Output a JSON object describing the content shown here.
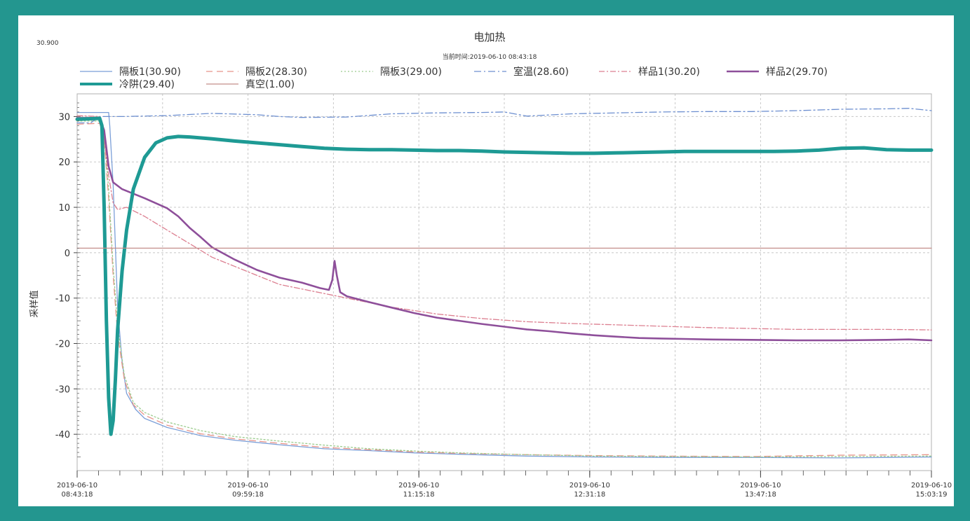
{
  "chart_data": {
    "type": "line",
    "title": "电加热",
    "subtitle": "当前时间:2019-06-10  08:43:18",
    "corner_value": "30.900",
    "ylabel": "采样值",
    "xlabel": "",
    "ylim": [
      -48,
      35
    ],
    "yticks": [
      30,
      20,
      10,
      0,
      -10,
      -20,
      -30,
      -40
    ],
    "x_unit": "minutes since 2019-06-10 08:43:18",
    "xlim": [
      0,
      380
    ],
    "xticks": [
      {
        "x": 0,
        "date": "2019-06-10",
        "time": "08:43:18"
      },
      {
        "x": 76,
        "date": "2019-06-10",
        "time": "09:59:18"
      },
      {
        "x": 152,
        "date": "2019-06-10",
        "time": "11:15:18"
      },
      {
        "x": 228,
        "date": "2019-06-10",
        "time": "12:31:18"
      },
      {
        "x": 304,
        "date": "2019-06-10",
        "time": "13:47:18"
      },
      {
        "x": 380,
        "date": "2019-06-10",
        "time": "15:03:19"
      }
    ],
    "grid": true,
    "legend_position": "top",
    "series": [
      {
        "name": "隔板1(30.90)",
        "color": "#7b9fd8",
        "dash": "",
        "width": 1.3,
        "points": [
          [
            0,
            30.9
          ],
          [
            14,
            30.9
          ],
          [
            14.5,
            28
          ],
          [
            16,
            15
          ],
          [
            18,
            -12
          ],
          [
            20,
            -24
          ],
          [
            22,
            -31
          ],
          [
            26,
            -34.5
          ],
          [
            30,
            -36.5
          ],
          [
            40,
            -38.5
          ],
          [
            55,
            -40.3
          ],
          [
            70,
            -41.3
          ],
          [
            90,
            -42.3
          ],
          [
            110,
            -43.2
          ],
          [
            130,
            -43.6
          ],
          [
            150,
            -44.1
          ],
          [
            170,
            -44.4
          ],
          [
            200,
            -44.8
          ],
          [
            230,
            -45.0
          ],
          [
            260,
            -45.1
          ],
          [
            300,
            -45.1
          ],
          [
            340,
            -45.2
          ],
          [
            380,
            -45.0
          ]
        ]
      },
      {
        "name": "隔板2(28.30)",
        "color": "#e8948a",
        "dash": "9,6",
        "width": 1.3,
        "points": [
          [
            0,
            28.3
          ],
          [
            10,
            28.5
          ],
          [
            12,
            25
          ],
          [
            14,
            12
          ],
          [
            16,
            -5
          ],
          [
            18,
            -18
          ],
          [
            21,
            -28
          ],
          [
            25,
            -33.5
          ],
          [
            30,
            -35.8
          ],
          [
            40,
            -38
          ],
          [
            55,
            -39.9
          ],
          [
            70,
            -41
          ],
          [
            90,
            -42
          ],
          [
            110,
            -42.9
          ],
          [
            130,
            -43.4
          ],
          [
            150,
            -43.9
          ],
          [
            170,
            -44.2
          ],
          [
            200,
            -44.5
          ],
          [
            230,
            -44.7
          ],
          [
            260,
            -44.8
          ],
          [
            300,
            -44.9
          ],
          [
            340,
            -44.6
          ],
          [
            380,
            -44.5
          ]
        ]
      },
      {
        "name": "隔板3(29.00)",
        "color": "#9ccc8e",
        "dash": "2,3",
        "width": 1.3,
        "points": [
          [
            0,
            29
          ],
          [
            10,
            29
          ],
          [
            12,
            26
          ],
          [
            14,
            14
          ],
          [
            16,
            -3
          ],
          [
            18,
            -16
          ],
          [
            21,
            -27
          ],
          [
            25,
            -33
          ],
          [
            30,
            -35.2
          ],
          [
            40,
            -37.3
          ],
          [
            55,
            -39.2
          ],
          [
            70,
            -40.5
          ],
          [
            90,
            -41.5
          ],
          [
            110,
            -42.4
          ],
          [
            130,
            -43.2
          ],
          [
            150,
            -43.7
          ],
          [
            170,
            -44.1
          ],
          [
            200,
            -44.5
          ],
          [
            230,
            -44.8
          ],
          [
            260,
            -44.9
          ],
          [
            300,
            -45
          ],
          [
            340,
            -44.9
          ],
          [
            380,
            -44.8
          ]
        ]
      },
      {
        "name": "室温(28.60)",
        "color": "#6d8fd0",
        "dash": "10,4,2,4",
        "width": 1.3,
        "points": [
          [
            0,
            28.6
          ],
          [
            6,
            28.6
          ],
          [
            10,
            30
          ],
          [
            20,
            30
          ],
          [
            40,
            30.2
          ],
          [
            60,
            30.7
          ],
          [
            80,
            30.4
          ],
          [
            90,
            30
          ],
          [
            100,
            29.8
          ],
          [
            120,
            29.9
          ],
          [
            140,
            30.6
          ],
          [
            160,
            30.8
          ],
          [
            180,
            30.9
          ],
          [
            190,
            31
          ],
          [
            200,
            30.1
          ],
          [
            220,
            30.6
          ],
          [
            240,
            30.8
          ],
          [
            260,
            31
          ],
          [
            280,
            31.1
          ],
          [
            300,
            31.1
          ],
          [
            320,
            31.3
          ],
          [
            340,
            31.6
          ],
          [
            360,
            31.7
          ],
          [
            370,
            31.8
          ],
          [
            380,
            31.3
          ]
        ]
      },
      {
        "name": "样品1(30.20)",
        "color": "#dc7f90",
        "dash": "8,3,2,3",
        "width": 1.3,
        "points": [
          [
            0,
            30.2
          ],
          [
            10,
            30
          ],
          [
            12,
            25
          ],
          [
            14,
            17
          ],
          [
            16,
            11
          ],
          [
            18,
            9.5
          ],
          [
            22,
            10
          ],
          [
            30,
            8
          ],
          [
            40,
            5
          ],
          [
            50,
            2
          ],
          [
            60,
            -1
          ],
          [
            70,
            -3
          ],
          [
            80,
            -5
          ],
          [
            90,
            -7
          ],
          [
            100,
            -8
          ],
          [
            110,
            -9
          ],
          [
            120,
            -10
          ],
          [
            140,
            -12
          ],
          [
            160,
            -13.5
          ],
          [
            180,
            -14.5
          ],
          [
            200,
            -15.2
          ],
          [
            220,
            -15.6
          ],
          [
            240,
            -15.9
          ],
          [
            260,
            -16.2
          ],
          [
            280,
            -16.5
          ],
          [
            300,
            -16.7
          ],
          [
            320,
            -16.9
          ],
          [
            340,
            -16.9
          ],
          [
            360,
            -16.9
          ],
          [
            380,
            -17
          ]
        ]
      },
      {
        "name": "样品2(29.70)",
        "color": "#8e4f9a",
        "dash": "",
        "width": 2.6,
        "points": [
          [
            0,
            29.7
          ],
          [
            10,
            29.7
          ],
          [
            12,
            27
          ],
          [
            14,
            19
          ],
          [
            16,
            15.5
          ],
          [
            20,
            14
          ],
          [
            25,
            13
          ],
          [
            30,
            12
          ],
          [
            40,
            9.8
          ],
          [
            45,
            8
          ],
          [
            50,
            5.5
          ],
          [
            55,
            3.4
          ],
          [
            60,
            1.2
          ],
          [
            70,
            -1.5
          ],
          [
            80,
            -3.8
          ],
          [
            90,
            -5.5
          ],
          [
            100,
            -6.6
          ],
          [
            108,
            -7.8
          ],
          [
            112,
            -8.2
          ],
          [
            113.5,
            -6
          ],
          [
            114.5,
            -1.8
          ],
          [
            115.5,
            -5
          ],
          [
            117,
            -8.7
          ],
          [
            120,
            -9.6
          ],
          [
            130,
            -10.9
          ],
          [
            140,
            -12.1
          ],
          [
            150,
            -13.3
          ],
          [
            160,
            -14.3
          ],
          [
            170,
            -15
          ],
          [
            180,
            -15.7
          ],
          [
            190,
            -16.3
          ],
          [
            200,
            -16.9
          ],
          [
            210,
            -17.3
          ],
          [
            220,
            -17.8
          ],
          [
            230,
            -18.2
          ],
          [
            240,
            -18.5
          ],
          [
            250,
            -18.8
          ],
          [
            260,
            -18.9
          ],
          [
            270,
            -19
          ],
          [
            280,
            -19.1
          ],
          [
            300,
            -19.2
          ],
          [
            320,
            -19.3
          ],
          [
            340,
            -19.3
          ],
          [
            360,
            -19.2
          ],
          [
            370,
            -19.1
          ],
          [
            380,
            -19.3
          ]
        ]
      },
      {
        "name": "冷阱(29.40)",
        "color": "#1e9a94",
        "dash": "",
        "width": 5,
        "points": [
          [
            0,
            29.4
          ],
          [
            10,
            29.6
          ],
          [
            11,
            28
          ],
          [
            12,
            10
          ],
          [
            13,
            -15
          ],
          [
            14,
            -32
          ],
          [
            15,
            -40
          ],
          [
            16,
            -37
          ],
          [
            17,
            -28
          ],
          [
            18,
            -17
          ],
          [
            20,
            -4
          ],
          [
            22,
            5
          ],
          [
            25,
            14
          ],
          [
            30,
            21
          ],
          [
            35,
            24.2
          ],
          [
            40,
            25.3
          ],
          [
            45,
            25.6
          ],
          [
            50,
            25.5
          ],
          [
            60,
            25.1
          ],
          [
            70,
            24.6
          ],
          [
            80,
            24.2
          ],
          [
            90,
            23.8
          ],
          [
            100,
            23.4
          ],
          [
            110,
            23
          ],
          [
            120,
            22.8
          ],
          [
            130,
            22.7
          ],
          [
            140,
            22.7
          ],
          [
            150,
            22.6
          ],
          [
            160,
            22.5
          ],
          [
            170,
            22.5
          ],
          [
            180,
            22.4
          ],
          [
            190,
            22.2
          ],
          [
            200,
            22.1
          ],
          [
            210,
            22
          ],
          [
            220,
            21.9
          ],
          [
            230,
            21.9
          ],
          [
            240,
            22
          ],
          [
            250,
            22.1
          ],
          [
            260,
            22.2
          ],
          [
            270,
            22.3
          ],
          [
            280,
            22.3
          ],
          [
            290,
            22.3
          ],
          [
            300,
            22.3
          ],
          [
            310,
            22.3
          ],
          [
            320,
            22.4
          ],
          [
            330,
            22.6
          ],
          [
            340,
            23
          ],
          [
            350,
            23.1
          ],
          [
            360,
            22.7
          ],
          [
            370,
            22.6
          ],
          [
            380,
            22.6
          ]
        ]
      },
      {
        "name": "真空(1.00)",
        "color": "#c48e8a",
        "dash": "",
        "width": 1.3,
        "points": [
          [
            0,
            1
          ],
          [
            380,
            1
          ]
        ]
      }
    ]
  }
}
